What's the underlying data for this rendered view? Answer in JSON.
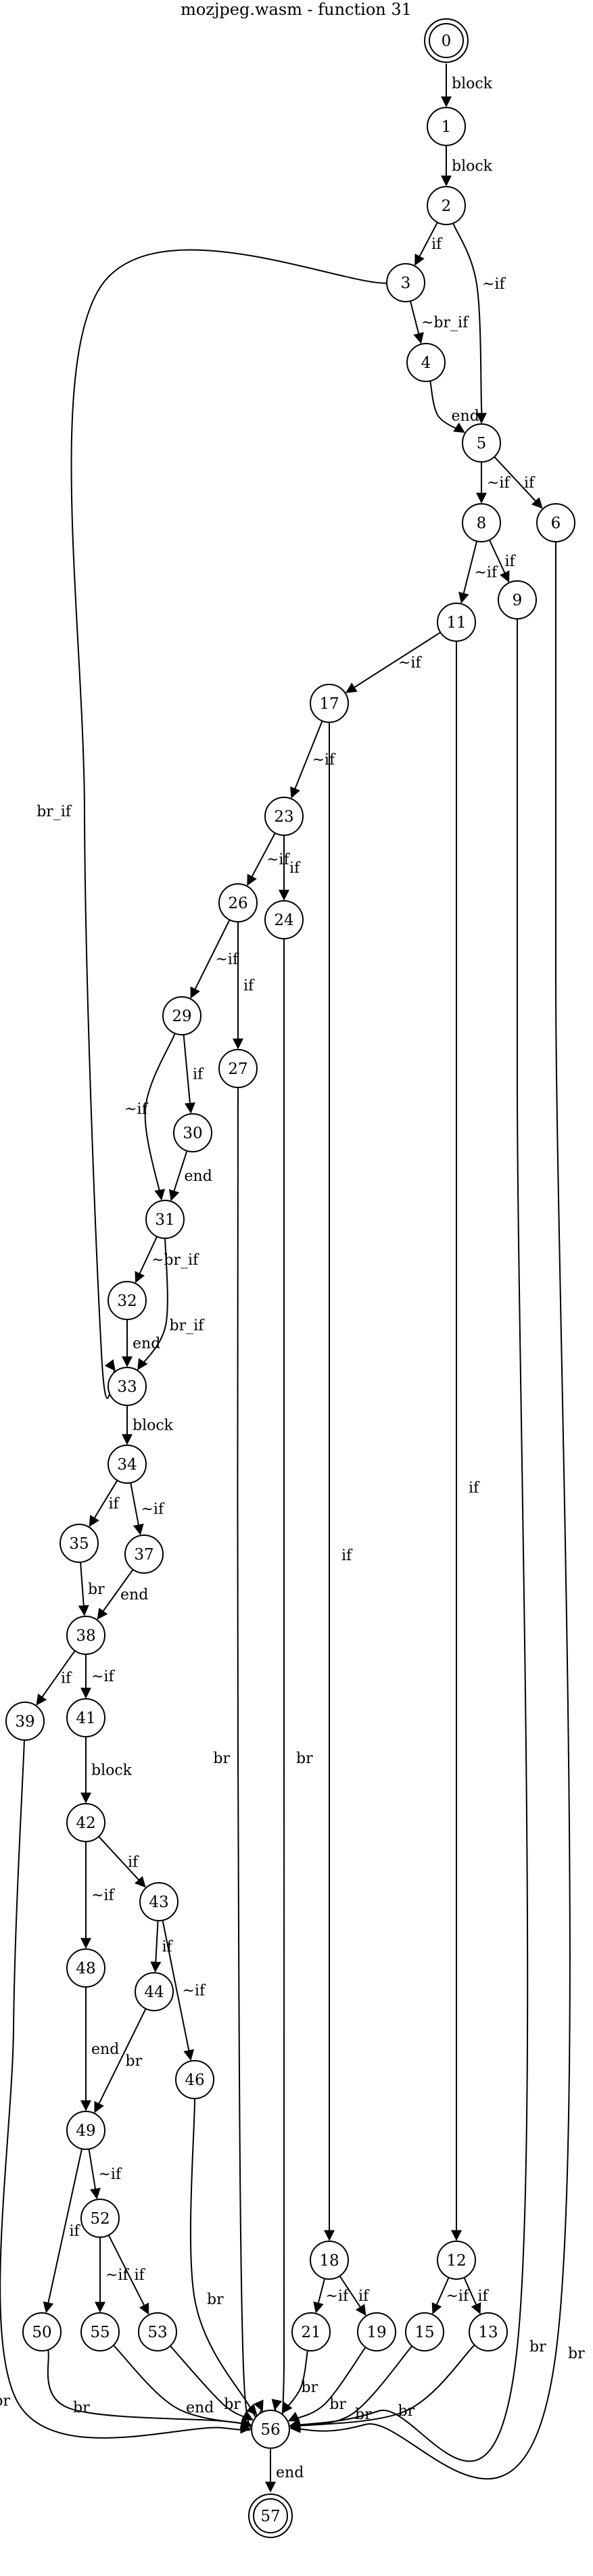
{
  "title": "mozjpeg.wasm - function 31",
  "nodes": [
    {
      "id": "0",
      "label": "0",
      "terminal": true
    },
    {
      "id": "1",
      "label": "1"
    },
    {
      "id": "2",
      "label": "2"
    },
    {
      "id": "3",
      "label": "3"
    },
    {
      "id": "4",
      "label": "4"
    },
    {
      "id": "5",
      "label": "5"
    },
    {
      "id": "6",
      "label": "6"
    },
    {
      "id": "8",
      "label": "8"
    },
    {
      "id": "9",
      "label": "9"
    },
    {
      "id": "11",
      "label": "11"
    },
    {
      "id": "12",
      "label": "12"
    },
    {
      "id": "13",
      "label": "13"
    },
    {
      "id": "15",
      "label": "15"
    },
    {
      "id": "17",
      "label": "17"
    },
    {
      "id": "18",
      "label": "18"
    },
    {
      "id": "19",
      "label": "19"
    },
    {
      "id": "21",
      "label": "21"
    },
    {
      "id": "23",
      "label": "23"
    },
    {
      "id": "24",
      "label": "24"
    },
    {
      "id": "26",
      "label": "26"
    },
    {
      "id": "27",
      "label": "27"
    },
    {
      "id": "29",
      "label": "29"
    },
    {
      "id": "30",
      "label": "30"
    },
    {
      "id": "31",
      "label": "31"
    },
    {
      "id": "32",
      "label": "32"
    },
    {
      "id": "33",
      "label": "33"
    },
    {
      "id": "34",
      "label": "34"
    },
    {
      "id": "35",
      "label": "35"
    },
    {
      "id": "37",
      "label": "37"
    },
    {
      "id": "38",
      "label": "38"
    },
    {
      "id": "39",
      "label": "39"
    },
    {
      "id": "41",
      "label": "41"
    },
    {
      "id": "42",
      "label": "42"
    },
    {
      "id": "43",
      "label": "43"
    },
    {
      "id": "44",
      "label": "44"
    },
    {
      "id": "46",
      "label": "46"
    },
    {
      "id": "48",
      "label": "48"
    },
    {
      "id": "49",
      "label": "49"
    },
    {
      "id": "50",
      "label": "50"
    },
    {
      "id": "52",
      "label": "52"
    },
    {
      "id": "53",
      "label": "53"
    },
    {
      "id": "55",
      "label": "55"
    },
    {
      "id": "56",
      "label": "56"
    },
    {
      "id": "57",
      "label": "57",
      "terminal": true
    }
  ],
  "edges": [
    {
      "from": "0",
      "to": "1",
      "label": "block"
    },
    {
      "from": "1",
      "to": "2",
      "label": "block"
    },
    {
      "from": "2",
      "to": "3",
      "label": "if"
    },
    {
      "from": "2",
      "to": "5",
      "label": "~if"
    },
    {
      "from": "3",
      "to": "4",
      "label": "~br_if"
    },
    {
      "from": "3",
      "to": "33",
      "label": "br_if"
    },
    {
      "from": "4",
      "to": "5",
      "label": "end"
    },
    {
      "from": "5",
      "to": "8",
      "label": "~if"
    },
    {
      "from": "5",
      "to": "6",
      "label": "if"
    },
    {
      "from": "6",
      "to": "56",
      "label": "br"
    },
    {
      "from": "8",
      "to": "11",
      "label": "~if"
    },
    {
      "from": "8",
      "to": "9",
      "label": "if"
    },
    {
      "from": "9",
      "to": "56",
      "label": "br"
    },
    {
      "from": "11",
      "to": "17",
      "label": "~if"
    },
    {
      "from": "11",
      "to": "12",
      "label": "if"
    },
    {
      "from": "12",
      "to": "15",
      "label": "~if"
    },
    {
      "from": "12",
      "to": "13",
      "label": "if"
    },
    {
      "from": "13",
      "to": "56",
      "label": "br"
    },
    {
      "from": "15",
      "to": "56",
      "label": "br"
    },
    {
      "from": "17",
      "to": "23",
      "label": "~if"
    },
    {
      "from": "17",
      "to": "18",
      "label": "if"
    },
    {
      "from": "18",
      "to": "21",
      "label": "~if"
    },
    {
      "from": "18",
      "to": "19",
      "label": "if"
    },
    {
      "from": "19",
      "to": "56",
      "label": "br"
    },
    {
      "from": "21",
      "to": "56",
      "label": "br"
    },
    {
      "from": "23",
      "to": "26",
      "label": "~if"
    },
    {
      "from": "23",
      "to": "24",
      "label": "if"
    },
    {
      "from": "24",
      "to": "56",
      "label": "br"
    },
    {
      "from": "26",
      "to": "29",
      "label": "~if"
    },
    {
      "from": "26",
      "to": "27",
      "label": "if"
    },
    {
      "from": "27",
      "to": "56",
      "label": "br"
    },
    {
      "from": "29",
      "to": "30",
      "label": "if"
    },
    {
      "from": "29",
      "to": "31",
      "label": "~if"
    },
    {
      "from": "30",
      "to": "31",
      "label": "end"
    },
    {
      "from": "31",
      "to": "32",
      "label": "~br_if"
    },
    {
      "from": "31",
      "to": "33",
      "label": "br_if"
    },
    {
      "from": "32",
      "to": "33",
      "label": "end"
    },
    {
      "from": "33",
      "to": "34",
      "label": "block"
    },
    {
      "from": "34",
      "to": "35",
      "label": "if"
    },
    {
      "from": "34",
      "to": "37",
      "label": "~if"
    },
    {
      "from": "35",
      "to": "38",
      "label": "br"
    },
    {
      "from": "37",
      "to": "38",
      "label": "end"
    },
    {
      "from": "38",
      "to": "39",
      "label": "if"
    },
    {
      "from": "38",
      "to": "41",
      "label": "~if"
    },
    {
      "from": "39",
      "to": "56",
      "label": "br"
    },
    {
      "from": "41",
      "to": "42",
      "label": "block"
    },
    {
      "from": "42",
      "to": "48",
      "label": "~if"
    },
    {
      "from": "42",
      "to": "43",
      "label": "if"
    },
    {
      "from": "43",
      "to": "44",
      "label": "if"
    },
    {
      "from": "43",
      "to": "46",
      "label": "~if"
    },
    {
      "from": "44",
      "to": "49",
      "label": "br"
    },
    {
      "from": "46",
      "to": "56",
      "label": "br"
    },
    {
      "from": "48",
      "to": "49",
      "label": "end"
    },
    {
      "from": "49",
      "to": "50",
      "label": "if"
    },
    {
      "from": "49",
      "to": "52",
      "label": "~if"
    },
    {
      "from": "50",
      "to": "56",
      "label": "br"
    },
    {
      "from": "52",
      "to": "55",
      "label": "~if"
    },
    {
      "from": "52",
      "to": "53",
      "label": "if"
    },
    {
      "from": "53",
      "to": "56",
      "label": "br"
    },
    {
      "from": "55",
      "to": "56",
      "label": "end"
    },
    {
      "from": "56",
      "to": "57",
      "label": "end"
    }
  ]
}
